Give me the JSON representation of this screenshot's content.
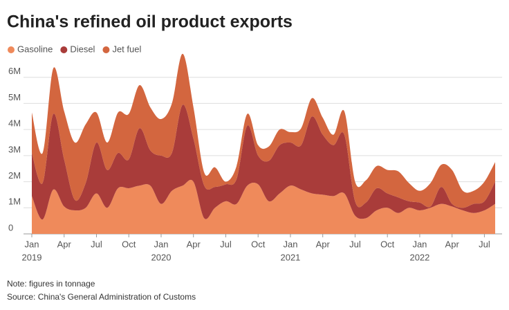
{
  "chart_data": {
    "type": "stacked_area",
    "title": "China's refined oil product exports",
    "note": "Note: figures in tonnage",
    "source": "Source: China's General Administration of Customs",
    "x": [
      "2019-01",
      "2019-02",
      "2019-03",
      "2019-04",
      "2019-05",
      "2019-06",
      "2019-07",
      "2019-08",
      "2019-09",
      "2019-10",
      "2019-11",
      "2019-12",
      "2020-01",
      "2020-02",
      "2020-03",
      "2020-04",
      "2020-05",
      "2020-06",
      "2020-07",
      "2020-08",
      "2020-09",
      "2020-10",
      "2020-11",
      "2020-12",
      "2021-01",
      "2021-02",
      "2021-03",
      "2021-04",
      "2021-05",
      "2021-06",
      "2021-07",
      "2021-08",
      "2021-09",
      "2021-10",
      "2021-11",
      "2021-12",
      "2022-01",
      "2022-02",
      "2022-03",
      "2022-04",
      "2022-05",
      "2022-06",
      "2022-07",
      "2022-08"
    ],
    "xticks": [
      {
        "value": "2019-01",
        "label": "Jan"
      },
      {
        "value": "2019-04",
        "label": "Apr"
      },
      {
        "value": "2019-07",
        "label": "Jul"
      },
      {
        "value": "2019-10",
        "label": "Oct"
      },
      {
        "value": "2020-01",
        "label": "Jan"
      },
      {
        "value": "2020-04",
        "label": "Apr"
      },
      {
        "value": "2020-07",
        "label": "Jul"
      },
      {
        "value": "2020-10",
        "label": "Oct"
      },
      {
        "value": "2021-01",
        "label": "Jan"
      },
      {
        "value": "2021-04",
        "label": "Apr"
      },
      {
        "value": "2021-07",
        "label": "Jul"
      },
      {
        "value": "2021-10",
        "label": "Oct"
      },
      {
        "value": "2022-01",
        "label": "Jan"
      },
      {
        "value": "2022-04",
        "label": "Apr"
      },
      {
        "value": "2022-07",
        "label": "Jul"
      }
    ],
    "xyears": [
      {
        "value": "2019-01",
        "label": "2019"
      },
      {
        "value": "2020-01",
        "label": "2020"
      },
      {
        "value": "2021-01",
        "label": "2021"
      },
      {
        "value": "2022-01",
        "label": "2022"
      }
    ],
    "ylim": [
      0,
      7000000
    ],
    "yticks": [
      {
        "value": 0,
        "label": "0"
      },
      {
        "value": 1000000,
        "label": "1M"
      },
      {
        "value": 2000000,
        "label": "2M"
      },
      {
        "value": 3000000,
        "label": "3M"
      },
      {
        "value": 4000000,
        "label": "4M"
      },
      {
        "value": 5000000,
        "label": "5M"
      },
      {
        "value": 6000000,
        "label": "6M"
      }
    ],
    "grid": true,
    "legend": "top-left",
    "series": [
      {
        "name": "Gasoline",
        "color": "#ef8a5b",
        "values": [
          1450000,
          550000,
          1700000,
          1050000,
          900000,
          1000000,
          1550000,
          1000000,
          1750000,
          1750000,
          1850000,
          1850000,
          1150000,
          1650000,
          1850000,
          2000000,
          600000,
          1000000,
          1250000,
          1150000,
          1850000,
          1900000,
          1250000,
          1550000,
          1850000,
          1700000,
          1550000,
          1500000,
          1450000,
          1550000,
          700000,
          600000,
          900000,
          1000000,
          800000,
          1000000,
          900000,
          1000000,
          1150000,
          1050000,
          900000,
          800000,
          900000,
          1150000
        ]
      },
      {
        "name": "Diesel",
        "color": "#a93c3a",
        "values": [
          1650000,
          1400000,
          2900000,
          1800000,
          400000,
          950000,
          1950000,
          1450000,
          1350000,
          1100000,
          2200000,
          1350000,
          1850000,
          1450000,
          3100000,
          1650000,
          1250000,
          800000,
          650000,
          950000,
          2300000,
          1100000,
          1550000,
          1850000,
          1650000,
          1700000,
          2950000,
          2300000,
          1950000,
          2250000,
          550000,
          600000,
          850000,
          550000,
          600000,
          250000,
          300000,
          50000,
          650000,
          100000,
          100000,
          350000,
          350000,
          850000
        ]
      },
      {
        "name": "Jet fuel",
        "color": "#d3663f",
        "values": [
          1550000,
          1150000,
          1750000,
          1850000,
          2200000,
          2250000,
          1150000,
          1050000,
          1550000,
          1750000,
          1650000,
          1650000,
          1400000,
          1900000,
          1950000,
          1200000,
          500000,
          750000,
          100000,
          500000,
          450000,
          400000,
          550000,
          600000,
          400000,
          650000,
          700000,
          650000,
          400000,
          900000,
          750000,
          850000,
          850000,
          900000,
          1000000,
          700000,
          450000,
          900000,
          850000,
          1300000,
          650000,
          500000,
          750000,
          750000
        ]
      }
    ]
  }
}
